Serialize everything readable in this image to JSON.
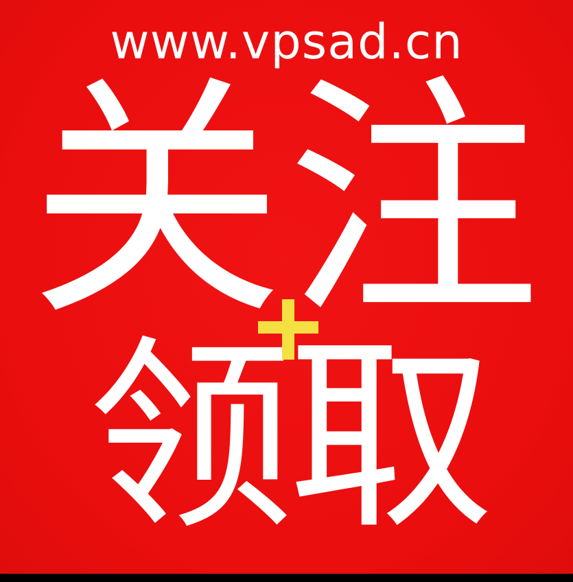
{
  "poster": {
    "url_text": "www.vpsad.cn",
    "line1": {
      "char1": "关",
      "char2": "注"
    },
    "plus_symbol": "+",
    "line2": {
      "char1": "领",
      "char2": "取"
    }
  },
  "colors": {
    "background": "#ee0f0f",
    "text": "#ffffff",
    "plus": "#f5e042"
  }
}
